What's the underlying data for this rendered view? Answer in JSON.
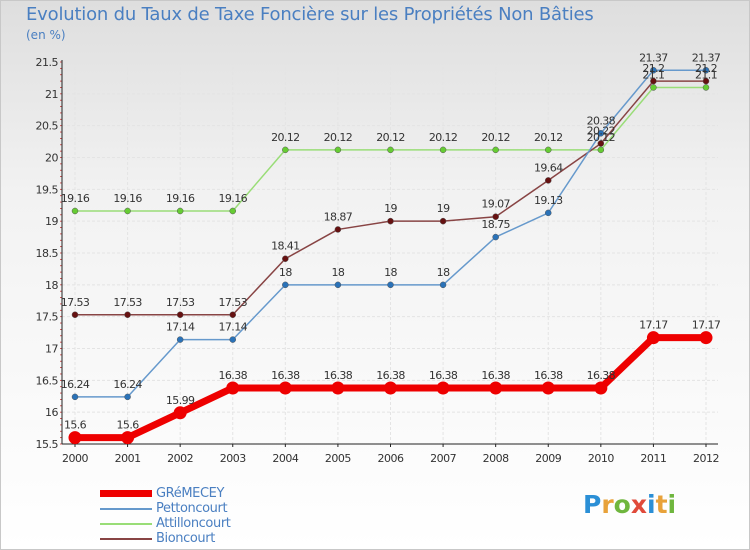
{
  "title": "Evolution du Taux de Taxe Foncière sur les Propriétés Non Bâties",
  "unit_label": "(en %)",
  "logo": {
    "text": "Proxiti",
    "colors": [
      "#2b8fd6",
      "#e8a23a",
      "#6fb63e",
      "#e04a3a",
      "#2b8fd6",
      "#e8a23a",
      "#6fb63e"
    ]
  },
  "chart_data": {
    "type": "line",
    "title": "Evolution du Taux de Taxe Foncière sur les Propriétés Non Bâties",
    "ylabel": "(en %)",
    "xlabel": "",
    "ylim": [
      15.5,
      21.5
    ],
    "yticks": [
      "15.5",
      "16",
      "16.5",
      "17",
      "17.5",
      "18",
      "18.5",
      "19",
      "19.5",
      "20",
      "20.5",
      "21",
      "21.5"
    ],
    "categories": [
      "2000",
      "2001",
      "2002",
      "2003",
      "2004",
      "2005",
      "2006",
      "2007",
      "2008",
      "2009",
      "2010",
      "2011",
      "2012"
    ],
    "grid": true,
    "series": [
      {
        "name": "GRéMECEY",
        "color": "#ee0000",
        "bold": true,
        "values": [
          15.6,
          15.6,
          15.99,
          16.38,
          16.38,
          16.38,
          16.38,
          16.38,
          16.38,
          16.38,
          16.38,
          17.17,
          17.17
        ],
        "labels": [
          "15.6",
          "15.6",
          "15.99",
          "16.38",
          "16.38",
          "16.38",
          "16.38",
          "16.38",
          "16.38",
          "16.38",
          "16.38",
          "17.17",
          "17.17"
        ]
      },
      {
        "name": "Pettoncourt",
        "color": "#6699cc",
        "marker": "#2a72b8",
        "values": [
          16.24,
          16.24,
          17.14,
          17.14,
          18,
          18,
          18,
          18,
          18.75,
          19.13,
          20.38,
          21.37,
          21.37
        ],
        "labels": [
          "16.24",
          "16.24",
          "17.14",
          "17.14",
          "18",
          "18",
          "18",
          "18",
          "18.75",
          "19.13",
          "20.38",
          "21.37",
          "21.37"
        ]
      },
      {
        "name": "Attilloncourt",
        "color": "#99dd77",
        "marker": "#66cc33",
        "values": [
          19.16,
          19.16,
          19.16,
          19.16,
          20.12,
          20.12,
          20.12,
          20.12,
          20.12,
          20.12,
          20.12,
          21.1,
          21.1
        ],
        "labels": [
          "19.16",
          "19.16",
          "19.16",
          "19.16",
          "20.12",
          "20.12",
          "20.12",
          "20.12",
          "20.12",
          "20.12",
          "20.12",
          "21.1",
          "21.1"
        ]
      },
      {
        "name": "Bioncourt",
        "color": "#884444",
        "marker": "#661111",
        "values": [
          17.53,
          17.53,
          17.53,
          17.53,
          18.41,
          18.87,
          19,
          19,
          19.07,
          19.64,
          20.22,
          21.2,
          21.2
        ],
        "labels": [
          "17.53",
          "17.53",
          "17.53",
          "17.53",
          "18.41",
          "18.87",
          "19",
          "19",
          "19.07",
          "19.64",
          "20.22",
          "21.2",
          "21.2"
        ]
      }
    ]
  }
}
